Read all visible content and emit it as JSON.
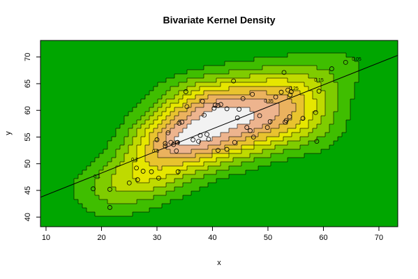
{
  "chart_data": {
    "type": "density2d",
    "title": "Bivariate Kernel Density",
    "x_label": "x",
    "y_label": "y",
    "xlim": [
      9.0,
      73.4
    ],
    "ylim": [
      38.2,
      73.1
    ],
    "xticks": [
      10,
      20,
      30,
      40,
      50,
      60,
      70
    ],
    "yticks": [
      40,
      45,
      50,
      55,
      60,
      65,
      70
    ],
    "contour_levels": [
      0.05,
      0.1,
      0.15,
      0.2,
      0.25,
      0.3,
      0.35,
      0.4
    ],
    "band_colors": [
      "#00A600",
      "#3FBE00",
      "#7FCC00",
      "#BFDA00",
      "#E6E600",
      "#E8C32E",
      "#EBB25E",
      "#EDB48E",
      "#F2F2F2"
    ],
    "point_color": "#000000",
    "line_color": "#000000",
    "points": {
      "x": [
        18.5,
        21.5,
        21.5,
        25,
        26.3,
        26.5,
        27.5,
        29,
        30,
        30.3,
        31.5,
        31.5,
        32,
        32.5,
        33,
        33.5,
        33.7,
        33.8,
        34,
        34.5,
        35.2,
        35.4,
        36.5,
        37.5,
        37.8,
        38.2,
        38.5,
        39,
        39.3,
        40.3,
        40.5,
        41,
        41,
        41.5,
        42.6,
        42.6,
        43.8,
        44,
        44.5,
        44.8,
        45.5,
        46.2,
        46.8,
        47.2,
        47.4,
        48.5,
        49.9,
        50.4,
        51.4,
        52.4,
        52.9,
        53.1,
        53.3,
        53.6,
        54,
        54.2,
        53.9,
        56.3,
        58.6,
        58.8,
        59.2,
        61.5,
        64
      ],
      "y": [
        45.3,
        45.2,
        41.8,
        46.4,
        49.2,
        47,
        48.6,
        48.5,
        54.5,
        47.3,
        53.3,
        53.8,
        55.8,
        54,
        53.6,
        52.4,
        54,
        48.5,
        57.6,
        57.8,
        63.5,
        60.7,
        54.5,
        54.2,
        55.3,
        61.7,
        59.1,
        55.5,
        54.6,
        60.4,
        61,
        60.9,
        52.5,
        61.1,
        60.3,
        52.7,
        65.5,
        54,
        58.6,
        60.2,
        62.2,
        56.8,
        56.2,
        63,
        55,
        59,
        56.8,
        57.9,
        62.5,
        63.4,
        67.1,
        57.8,
        58.1,
        63.8,
        62.9,
        63.5,
        58.8,
        58.5,
        59.6,
        54.2,
        63.6,
        67.8,
        69
      ]
    },
    "regression": {
      "intercept": 40.0,
      "slope": 0.413
    }
  }
}
